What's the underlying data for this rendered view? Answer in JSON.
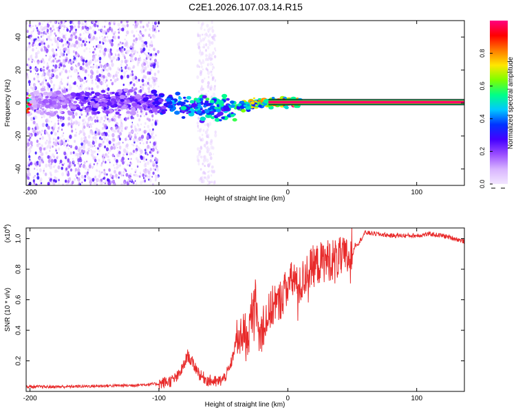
{
  "figure": {
    "title": "C2E1.2026.107.03.14.R15"
  },
  "chart_data": [
    {
      "id": "spectrogram",
      "type": "heatmap",
      "title": "C2E1.2026.107.03.14.R15",
      "xlabel": "Height of straight line (km)",
      "ylabel": "Frequency (Hz)",
      "xlim": [
        -203,
        137
      ],
      "ylim": [
        -50,
        50
      ],
      "xticks": [
        -200,
        -100,
        0,
        100
      ],
      "yticks": [
        -40,
        -20,
        0,
        20,
        40
      ],
      "xtick_labels": [
        "-200",
        "-100",
        "0",
        "100"
      ],
      "ytick_labels": [
        "-40",
        "-20",
        "0",
        "20",
        "40"
      ],
      "colorbar": {
        "label": "Normalized spectral amplitude",
        "range": [
          0,
          1
        ],
        "ticks": [
          0.0,
          0.2,
          0.4,
          0.6,
          0.8
        ],
        "tick_labels": [
          "0.0",
          "0.2",
          "0.4",
          "0.6",
          "0.8"
        ],
        "colors": [
          "#f2e6ff",
          "#d8b4ff",
          "#9a4dff",
          "#4400ff",
          "#0033ff",
          "#00c8ff",
          "#00ff88",
          "#7cff00",
          "#ffe600",
          "#ff7a00",
          "#ff0000",
          "#ff0080"
        ]
      },
      "scatter_regions": [
        {
          "x": [
            -203,
            -100
          ],
          "y": [
            -50,
            50
          ],
          "amp": [
            0.02,
            0.3
          ],
          "density": 2200
        },
        {
          "x": [
            -70,
            -56
          ],
          "y": [
            -50,
            50
          ],
          "amp": [
            0.01,
            0.08
          ],
          "density": 260
        }
      ],
      "ridge": [
        {
          "x": -200,
          "y": 1.0,
          "amp": 0.12
        },
        {
          "x": -170,
          "y": 0.0,
          "amp": 0.2
        },
        {
          "x": -150,
          "y": 0.5,
          "amp": 0.25
        },
        {
          "x": -120,
          "y": 0.5,
          "amp": 0.22
        },
        {
          "x": -100,
          "y": 0.0,
          "amp": 0.3
        },
        {
          "x": -80,
          "y": -2.0,
          "amp": 0.45
        },
        {
          "x": -60,
          "y": -3.0,
          "amp": 0.5
        },
        {
          "x": -45,
          "y": -3.0,
          "amp": 0.45
        },
        {
          "x": -30,
          "y": -1.0,
          "amp": 0.65
        },
        {
          "x": -20,
          "y": 0.0,
          "amp": 0.7
        },
        {
          "x": -10,
          "y": 0.5,
          "amp": 0.75
        },
        {
          "x": 0,
          "y": 0.5,
          "amp": 0.85
        },
        {
          "x": 50,
          "y": 0.5,
          "amp": 0.9
        },
        {
          "x": 137,
          "y": 0.5,
          "amp": 0.92
        }
      ],
      "carrier_line": {
        "x_start": -15,
        "x_end": 137,
        "y": 0.5
      }
    },
    {
      "id": "snr",
      "type": "line",
      "xlabel": "Height of straight line (km)",
      "ylabel": "SNR (10 * v/v)",
      "y_multiplier": "(x10",
      "y_multiplier_exp": "4",
      "y_multiplier_close": ")",
      "color": "#e82a2a",
      "xlim": [
        -203,
        137
      ],
      "ylim": [
        0,
        1.07
      ],
      "xticks": [
        -200,
        -100,
        0,
        100
      ],
      "yticks": [
        0.2,
        0.4,
        0.6,
        0.8,
        1.0
      ],
      "xtick_labels": [
        "-200",
        "-100",
        "0",
        "100"
      ],
      "ytick_labels": [
        "0.2",
        "0.4",
        "0.6",
        "0.8",
        "1.0"
      ],
      "series": [
        {
          "name": "SNR",
          "x": [
            -203,
            -180,
            -150,
            -120,
            -100,
            -90,
            -85,
            -80,
            -78,
            -75,
            -72,
            -70,
            -68,
            -65,
            -62,
            -60,
            -55,
            -50,
            -45,
            -42,
            -40,
            -38,
            -35,
            -32,
            -30,
            -28,
            -26,
            -25,
            -24,
            -22,
            -20,
            -18,
            -15,
            -12,
            -10,
            -8,
            -5,
            -2,
            0,
            2,
            5,
            8,
            10,
            15,
            20,
            30,
            40,
            50,
            52,
            55,
            60,
            70,
            80,
            90,
            100,
            110,
            120,
            130,
            137
          ],
          "y": [
            0.03,
            0.03,
            0.035,
            0.04,
            0.05,
            0.07,
            0.1,
            0.18,
            0.24,
            0.2,
            0.16,
            0.14,
            0.1,
            0.09,
            0.07,
            0.07,
            0.06,
            0.08,
            0.15,
            0.25,
            0.35,
            0.3,
            0.42,
            0.3,
            0.4,
            0.5,
            0.55,
            0.75,
            0.45,
            0.35,
            0.42,
            0.45,
            0.5,
            0.55,
            0.6,
            0.55,
            0.62,
            0.65,
            0.72,
            0.7,
            0.75,
            0.65,
            0.7,
            0.78,
            0.82,
            0.86,
            0.87,
            0.88,
            0.96,
            0.97,
            1.04,
            1.03,
            1.02,
            1.02,
            1.02,
            1.03,
            1.02,
            1.0,
            0.98
          ]
        }
      ]
    }
  ]
}
